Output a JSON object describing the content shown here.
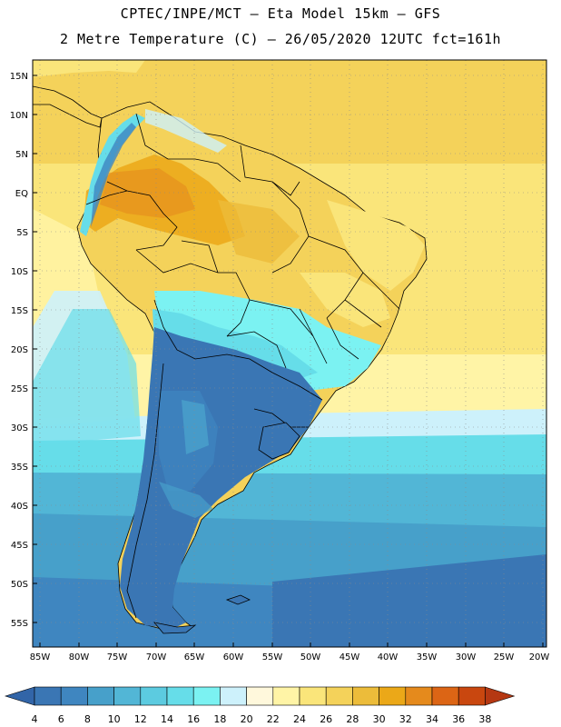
{
  "header": {
    "line1": "CPTEC/INPE/MCT –  Eta Model 15km – GFS",
    "line2": "2 Metre Temperature (C) – 26/05/2020 12UTC fct=161h"
  },
  "map": {
    "lat_labels": [
      "15N",
      "10N",
      "5N",
      "EQ",
      "5S",
      "10S",
      "15S",
      "20S",
      "25S",
      "30S",
      "35S",
      "40S",
      "45S",
      "50S",
      "55S"
    ],
    "lon_labels": [
      "85W",
      "80W",
      "75W",
      "70W",
      "65W",
      "60W",
      "55W",
      "50W",
      "45W",
      "40W",
      "35W",
      "30W",
      "25W",
      "20W"
    ]
  },
  "legend": {
    "values": [
      "4",
      "6",
      "8",
      "10",
      "12",
      "14",
      "16",
      "18",
      "20",
      "22",
      "24",
      "26",
      "28",
      "30",
      "32",
      "34",
      "36",
      "38"
    ],
    "colors": [
      "#3a76b4",
      "#3f86c0",
      "#47a0ca",
      "#52b6d6",
      "#5ccbe0",
      "#66dde9",
      "#7bf2f2",
      "#cdf1fb",
      "#fff8dc",
      "#fff4a6",
      "#fae57a",
      "#f4d25a",
      "#ecbc3a",
      "#eba818",
      "#e58a1c",
      "#dc6515",
      "#c9470f"
    ],
    "arrow_low": "#3265a8",
    "arrow_high": "#b53812"
  }
}
